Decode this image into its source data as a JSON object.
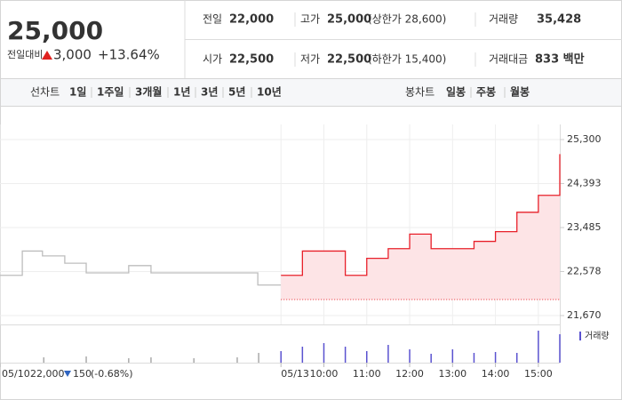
{
  "header": {
    "price": "25,000",
    "change_label": "전일대비",
    "change": "3,000",
    "change_pct": "+13.64%",
    "color": "#e0211f",
    "stats": [
      [
        {
          "label": "전일",
          "value": "22,000"
        },
        {
          "label": "고가",
          "value": "25,000",
          "note": "(상한가 28,600)",
          "color": "#e0211f"
        },
        {
          "label": "거래량",
          "value": "35,428"
        }
      ],
      [
        {
          "label": "시가",
          "value": "22,500",
          "color": "#e0211f"
        },
        {
          "label": "저가",
          "value": "22,500",
          "note": "(하한가 15,400)",
          "color": "#e0211f"
        },
        {
          "label": "거래대금",
          "value": "833 백만"
        }
      ]
    ]
  },
  "tabs": {
    "line_label": "선차트",
    "line_periods": [
      "1일",
      "1주일",
      "3개월",
      "1년",
      "3년",
      "5년",
      "10년"
    ],
    "active": 0,
    "candle_label": "봉차트",
    "candle_periods": [
      "일봉",
      "주봉",
      "월봉"
    ]
  },
  "chart_data": {
    "type": "line",
    "step": true,
    "grid": true,
    "xlim": [
      2.45,
      15.5
    ],
    "xticks": [
      {
        "value": 2.45,
        "label": "05/10"
      },
      {
        "value": 9,
        "label": "05/13"
      },
      {
        "value": 10,
        "label": "10:00"
      },
      {
        "value": 11,
        "label": "11:00"
      },
      {
        "value": 12,
        "label": "12:00"
      },
      {
        "value": 13,
        "label": "13:00"
      },
      {
        "value": 14,
        "label": "14:00"
      },
      {
        "value": 15,
        "label": "15:00"
      }
    ],
    "ylim": [
      21670,
      25300
    ],
    "yticks": [
      {
        "value": 25300,
        "label": "25,300"
      },
      {
        "value": 24393,
        "label": "24,393"
      },
      {
        "value": 23485,
        "label": "23,485"
      },
      {
        "value": 22578,
        "label": "22,578"
      },
      {
        "value": 21670,
        "label": "21,670"
      }
    ],
    "series": [
      {
        "color": "#bdbdbd",
        "x": [
          2.45,
          2.97,
          3.44,
          3.96,
          4.46,
          5.45,
          5.97,
          8.46
        ],
        "values": [
          22500,
          23000,
          22900,
          22750,
          22550,
          22700,
          22550,
          22300
        ]
      },
      {
        "color": "#e8202a",
        "fill": "#fde4e6",
        "x": [
          9,
          9.5,
          10.5,
          11,
          11.5,
          12,
          12.5,
          13.5,
          14,
          14.5,
          15,
          15.5
        ],
        "values": [
          22500,
          23000,
          22500,
          22850,
          23050,
          23350,
          23050,
          23200,
          23400,
          23800,
          24150,
          25000
        ]
      }
    ],
    "reference": {
      "value": 22000,
      "label": "22,000"
    },
    "reference_change": "150",
    "reference_change_pct": "(-0.68%)",
    "reference_color": "#2f64c0",
    "volume": {
      "name": "거래량",
      "ylim": [
        0,
        40
      ],
      "series": [
        {
          "color": "#aaaaaa",
          "x": [
            3.47,
            4.46,
            5.45,
            5.97,
            6.97,
            7.98,
            8.48
          ],
          "values": [
            6,
            7,
            5,
            6,
            5,
            6,
            11
          ]
        },
        {
          "color": "#5a52d0",
          "x": [
            9,
            9.5,
            10,
            10.5,
            11,
            11.5,
            12,
            12.5,
            13,
            13.5,
            14,
            14.5,
            15,
            15.5
          ],
          "values": [
            13,
            18,
            22,
            18,
            13,
            20,
            15,
            10,
            15,
            11,
            12,
            11,
            36,
            32
          ]
        }
      ]
    }
  }
}
